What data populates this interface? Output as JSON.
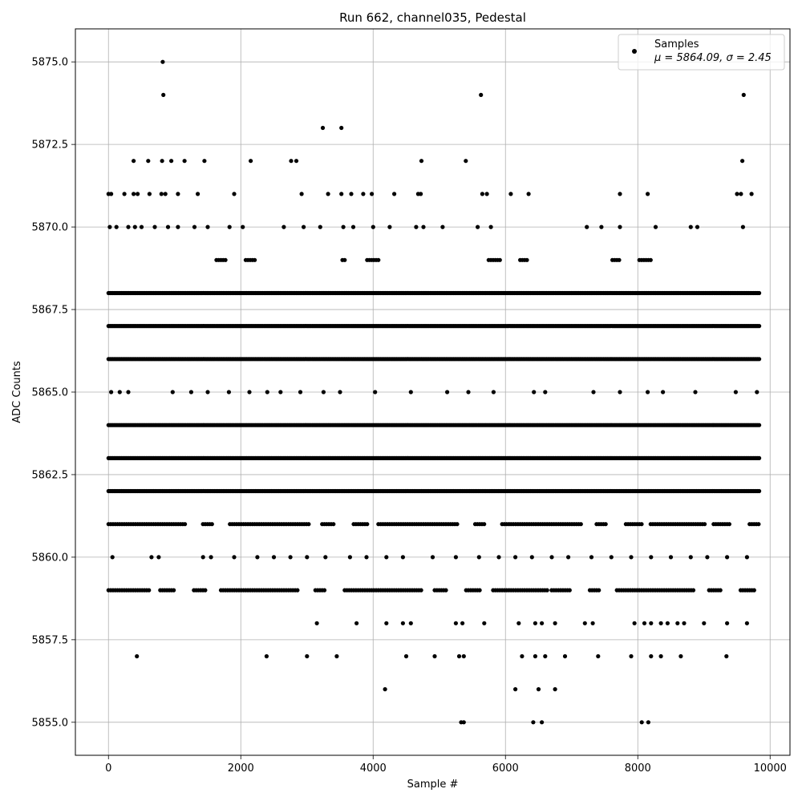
{
  "chart_data": {
    "type": "scatter",
    "title": "Run 662, channel035, Pedestal",
    "xlabel": "Sample #",
    "ylabel": "ADC Counts",
    "xlim": [
      -500,
      10300
    ],
    "ylim": [
      5854,
      5876
    ],
    "xticks": [
      0,
      2000,
      4000,
      6000,
      8000,
      10000
    ],
    "xtick_labels": [
      "0",
      "2000",
      "4000",
      "6000",
      "8000",
      "10000"
    ],
    "yticks": [
      5855.0,
      5857.5,
      5860.0,
      5862.5,
      5865.0,
      5867.5,
      5870.0,
      5872.5,
      5875.0
    ],
    "ytick_labels": [
      "5855.0",
      "5857.5",
      "5860.0",
      "5862.5",
      "5865.0",
      "5867.5",
      "5870.0",
      "5872.5",
      "5875.0"
    ],
    "grid": true,
    "legend_position": "top-right",
    "legend": {
      "label": "Samples",
      "stats": "μ = 5864.09, σ = 2.45"
    },
    "marker_color": "#000000",
    "series": [
      {
        "name": "Samples",
        "x_start": 0,
        "x_end": 9850,
        "dense_levels": [
          5862,
          5863,
          5864,
          5866,
          5867,
          5868
        ],
        "medium_levels": [
          5861,
          5859,
          5869
        ],
        "points": [
          [
            820,
            5875
          ],
          [
            830,
            5874
          ],
          [
            5630,
            5874
          ],
          [
            9600,
            5874
          ],
          [
            3240,
            5873
          ],
          [
            3520,
            5873
          ],
          [
            380,
            5872
          ],
          [
            600,
            5872
          ],
          [
            810,
            5872
          ],
          [
            950,
            5872
          ],
          [
            1150,
            5872
          ],
          [
            1450,
            5872
          ],
          [
            2150,
            5872
          ],
          [
            2760,
            5872
          ],
          [
            2840,
            5872
          ],
          [
            4730,
            5872
          ],
          [
            5400,
            5872
          ],
          [
            9580,
            5872
          ],
          [
            0,
            5871
          ],
          [
            40,
            5871
          ],
          [
            240,
            5871
          ],
          [
            380,
            5871
          ],
          [
            440,
            5871
          ],
          [
            620,
            5871
          ],
          [
            800,
            5871
          ],
          [
            860,
            5871
          ],
          [
            1050,
            5871
          ],
          [
            1350,
            5871
          ],
          [
            1900,
            5871
          ],
          [
            2920,
            5871
          ],
          [
            3320,
            5871
          ],
          [
            3520,
            5871
          ],
          [
            3670,
            5871
          ],
          [
            3850,
            5871
          ],
          [
            3980,
            5871
          ],
          [
            4320,
            5871
          ],
          [
            4680,
            5871
          ],
          [
            4720,
            5871
          ],
          [
            5650,
            5871
          ],
          [
            5720,
            5871
          ],
          [
            6080,
            5871
          ],
          [
            6350,
            5871
          ],
          [
            7730,
            5871
          ],
          [
            8150,
            5871
          ],
          [
            9500,
            5871
          ],
          [
            9560,
            5871
          ],
          [
            9720,
            5871
          ],
          [
            20,
            5870
          ],
          [
            120,
            5870
          ],
          [
            300,
            5870
          ],
          [
            400,
            5870
          ],
          [
            500,
            5870
          ],
          [
            700,
            5870
          ],
          [
            900,
            5870
          ],
          [
            1050,
            5870
          ],
          [
            1300,
            5870
          ],
          [
            1500,
            5870
          ],
          [
            1830,
            5870
          ],
          [
            2030,
            5870
          ],
          [
            2650,
            5870
          ],
          [
            2950,
            5870
          ],
          [
            3200,
            5870
          ],
          [
            3550,
            5870
          ],
          [
            3700,
            5870
          ],
          [
            4000,
            5870
          ],
          [
            4250,
            5870
          ],
          [
            4650,
            5870
          ],
          [
            4760,
            5870
          ],
          [
            5050,
            5870
          ],
          [
            5580,
            5870
          ],
          [
            5780,
            5870
          ],
          [
            7230,
            5870
          ],
          [
            7450,
            5870
          ],
          [
            7730,
            5870
          ],
          [
            8270,
            5870
          ],
          [
            8800,
            5870
          ],
          [
            8900,
            5870
          ],
          [
            9590,
            5870
          ],
          [
            40,
            5865
          ],
          [
            170,
            5865
          ],
          [
            300,
            5865
          ],
          [
            970,
            5865
          ],
          [
            1250,
            5865
          ],
          [
            1500,
            5865
          ],
          [
            1820,
            5865
          ],
          [
            2130,
            5865
          ],
          [
            2400,
            5865
          ],
          [
            2600,
            5865
          ],
          [
            2900,
            5865
          ],
          [
            3250,
            5865
          ],
          [
            3500,
            5865
          ],
          [
            4030,
            5865
          ],
          [
            4570,
            5865
          ],
          [
            5120,
            5865
          ],
          [
            5440,
            5865
          ],
          [
            5820,
            5865
          ],
          [
            6430,
            5865
          ],
          [
            6600,
            5865
          ],
          [
            7330,
            5865
          ],
          [
            7730,
            5865
          ],
          [
            8150,
            5865
          ],
          [
            8380,
            5865
          ],
          [
            8870,
            5865
          ],
          [
            9480,
            5865
          ],
          [
            9800,
            5865
          ],
          [
            60,
            5860
          ],
          [
            650,
            5860
          ],
          [
            760,
            5860
          ],
          [
            1430,
            5860
          ],
          [
            1550,
            5860
          ],
          [
            1900,
            5860
          ],
          [
            2250,
            5860
          ],
          [
            2500,
            5860
          ],
          [
            2750,
            5860
          ],
          [
            3000,
            5860
          ],
          [
            3280,
            5860
          ],
          [
            3650,
            5860
          ],
          [
            3900,
            5860
          ],
          [
            4200,
            5860
          ],
          [
            4450,
            5860
          ],
          [
            4900,
            5860
          ],
          [
            5250,
            5860
          ],
          [
            5600,
            5860
          ],
          [
            5900,
            5860
          ],
          [
            6150,
            5860
          ],
          [
            6400,
            5860
          ],
          [
            6700,
            5860
          ],
          [
            6950,
            5860
          ],
          [
            7300,
            5860
          ],
          [
            7600,
            5860
          ],
          [
            7900,
            5860
          ],
          [
            8200,
            5860
          ],
          [
            8500,
            5860
          ],
          [
            8800,
            5860
          ],
          [
            9050,
            5860
          ],
          [
            9350,
            5860
          ],
          [
            9650,
            5860
          ],
          [
            3150,
            5858
          ],
          [
            3750,
            5858
          ],
          [
            4200,
            5858
          ],
          [
            4450,
            5858
          ],
          [
            4570,
            5858
          ],
          [
            5250,
            5858
          ],
          [
            5350,
            5858
          ],
          [
            5680,
            5858
          ],
          [
            6200,
            5858
          ],
          [
            6450,
            5858
          ],
          [
            6550,
            5858
          ],
          [
            6750,
            5858
          ],
          [
            7200,
            5858
          ],
          [
            7320,
            5858
          ],
          [
            7950,
            5858
          ],
          [
            8100,
            5858
          ],
          [
            8200,
            5858
          ],
          [
            8350,
            5858
          ],
          [
            8450,
            5858
          ],
          [
            8600,
            5858
          ],
          [
            8700,
            5858
          ],
          [
            9000,
            5858
          ],
          [
            9350,
            5858
          ],
          [
            9650,
            5858
          ],
          [
            430,
            5857
          ],
          [
            2390,
            5857
          ],
          [
            3000,
            5857
          ],
          [
            3450,
            5857
          ],
          [
            4500,
            5857
          ],
          [
            4930,
            5857
          ],
          [
            5300,
            5857
          ],
          [
            5370,
            5857
          ],
          [
            6250,
            5857
          ],
          [
            6450,
            5857
          ],
          [
            6600,
            5857
          ],
          [
            6900,
            5857
          ],
          [
            7400,
            5857
          ],
          [
            7900,
            5857
          ],
          [
            8200,
            5857
          ],
          [
            8350,
            5857
          ],
          [
            8650,
            5857
          ],
          [
            9340,
            5857
          ],
          [
            4180,
            5856
          ],
          [
            6150,
            5856
          ],
          [
            6500,
            5856
          ],
          [
            6750,
            5856
          ],
          [
            5330,
            5855
          ],
          [
            5370,
            5855
          ],
          [
            6420,
            5855
          ],
          [
            6550,
            5855
          ],
          [
            8060,
            5855
          ],
          [
            8160,
            5855
          ]
        ]
      }
    ]
  }
}
